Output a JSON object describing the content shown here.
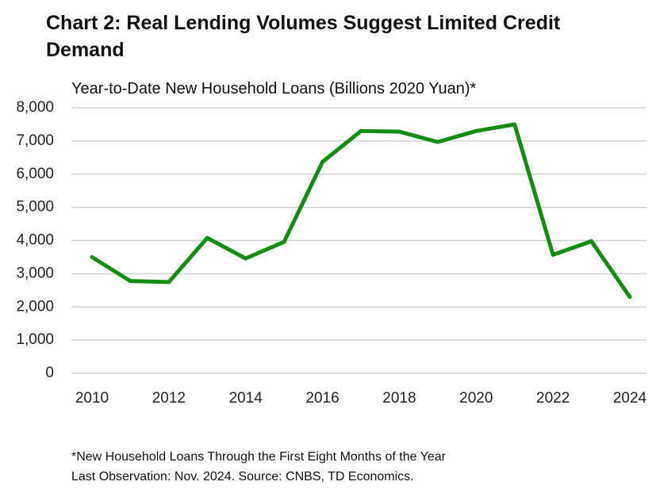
{
  "chart_data": {
    "type": "line",
    "title": "Chart 2: Real Lending Volumes Suggest Limited Credit Demand",
    "subtitle": "Year-to-Date New Household Loans (Billions 2020 Yuan)*",
    "notes": [
      "*New Household Loans Through the First Eight Months of the Year",
      "Last Observation: Nov. 2024. Source: CNBS, TD Economics."
    ],
    "x": [
      2010,
      2011,
      2012,
      2013,
      2014,
      2015,
      2016,
      2017,
      2018,
      2019,
      2020,
      2021,
      2022,
      2023,
      2024
    ],
    "series": [
      {
        "color": "#148c12",
        "values": [
          3500,
          2780,
          2750,
          4080,
          3460,
          3960,
          6370,
          7300,
          7280,
          6970,
          7300,
          7500,
          3570,
          3980,
          2300
        ]
      }
    ],
    "xlim": [
      2010,
      2024
    ],
    "xticks": [
      2010,
      2012,
      2014,
      2016,
      2018,
      2020,
      2022,
      2024
    ],
    "ylim": [
      0,
      8000
    ],
    "yticks": [
      0,
      {
        "value": 1000,
        "label": "1,000"
      },
      {
        "value": 2000,
        "label": "2,000"
      },
      {
        "value": 3000,
        "label": "3,000"
      },
      {
        "value": 4000,
        "label": "4,000"
      },
      {
        "value": 5000,
        "label": "5,000"
      },
      {
        "value": 6000,
        "label": "6,000"
      },
      {
        "value": 7000,
        "label": "7,000"
      },
      {
        "value": 8000,
        "label": "8,000"
      }
    ],
    "grid": true
  }
}
